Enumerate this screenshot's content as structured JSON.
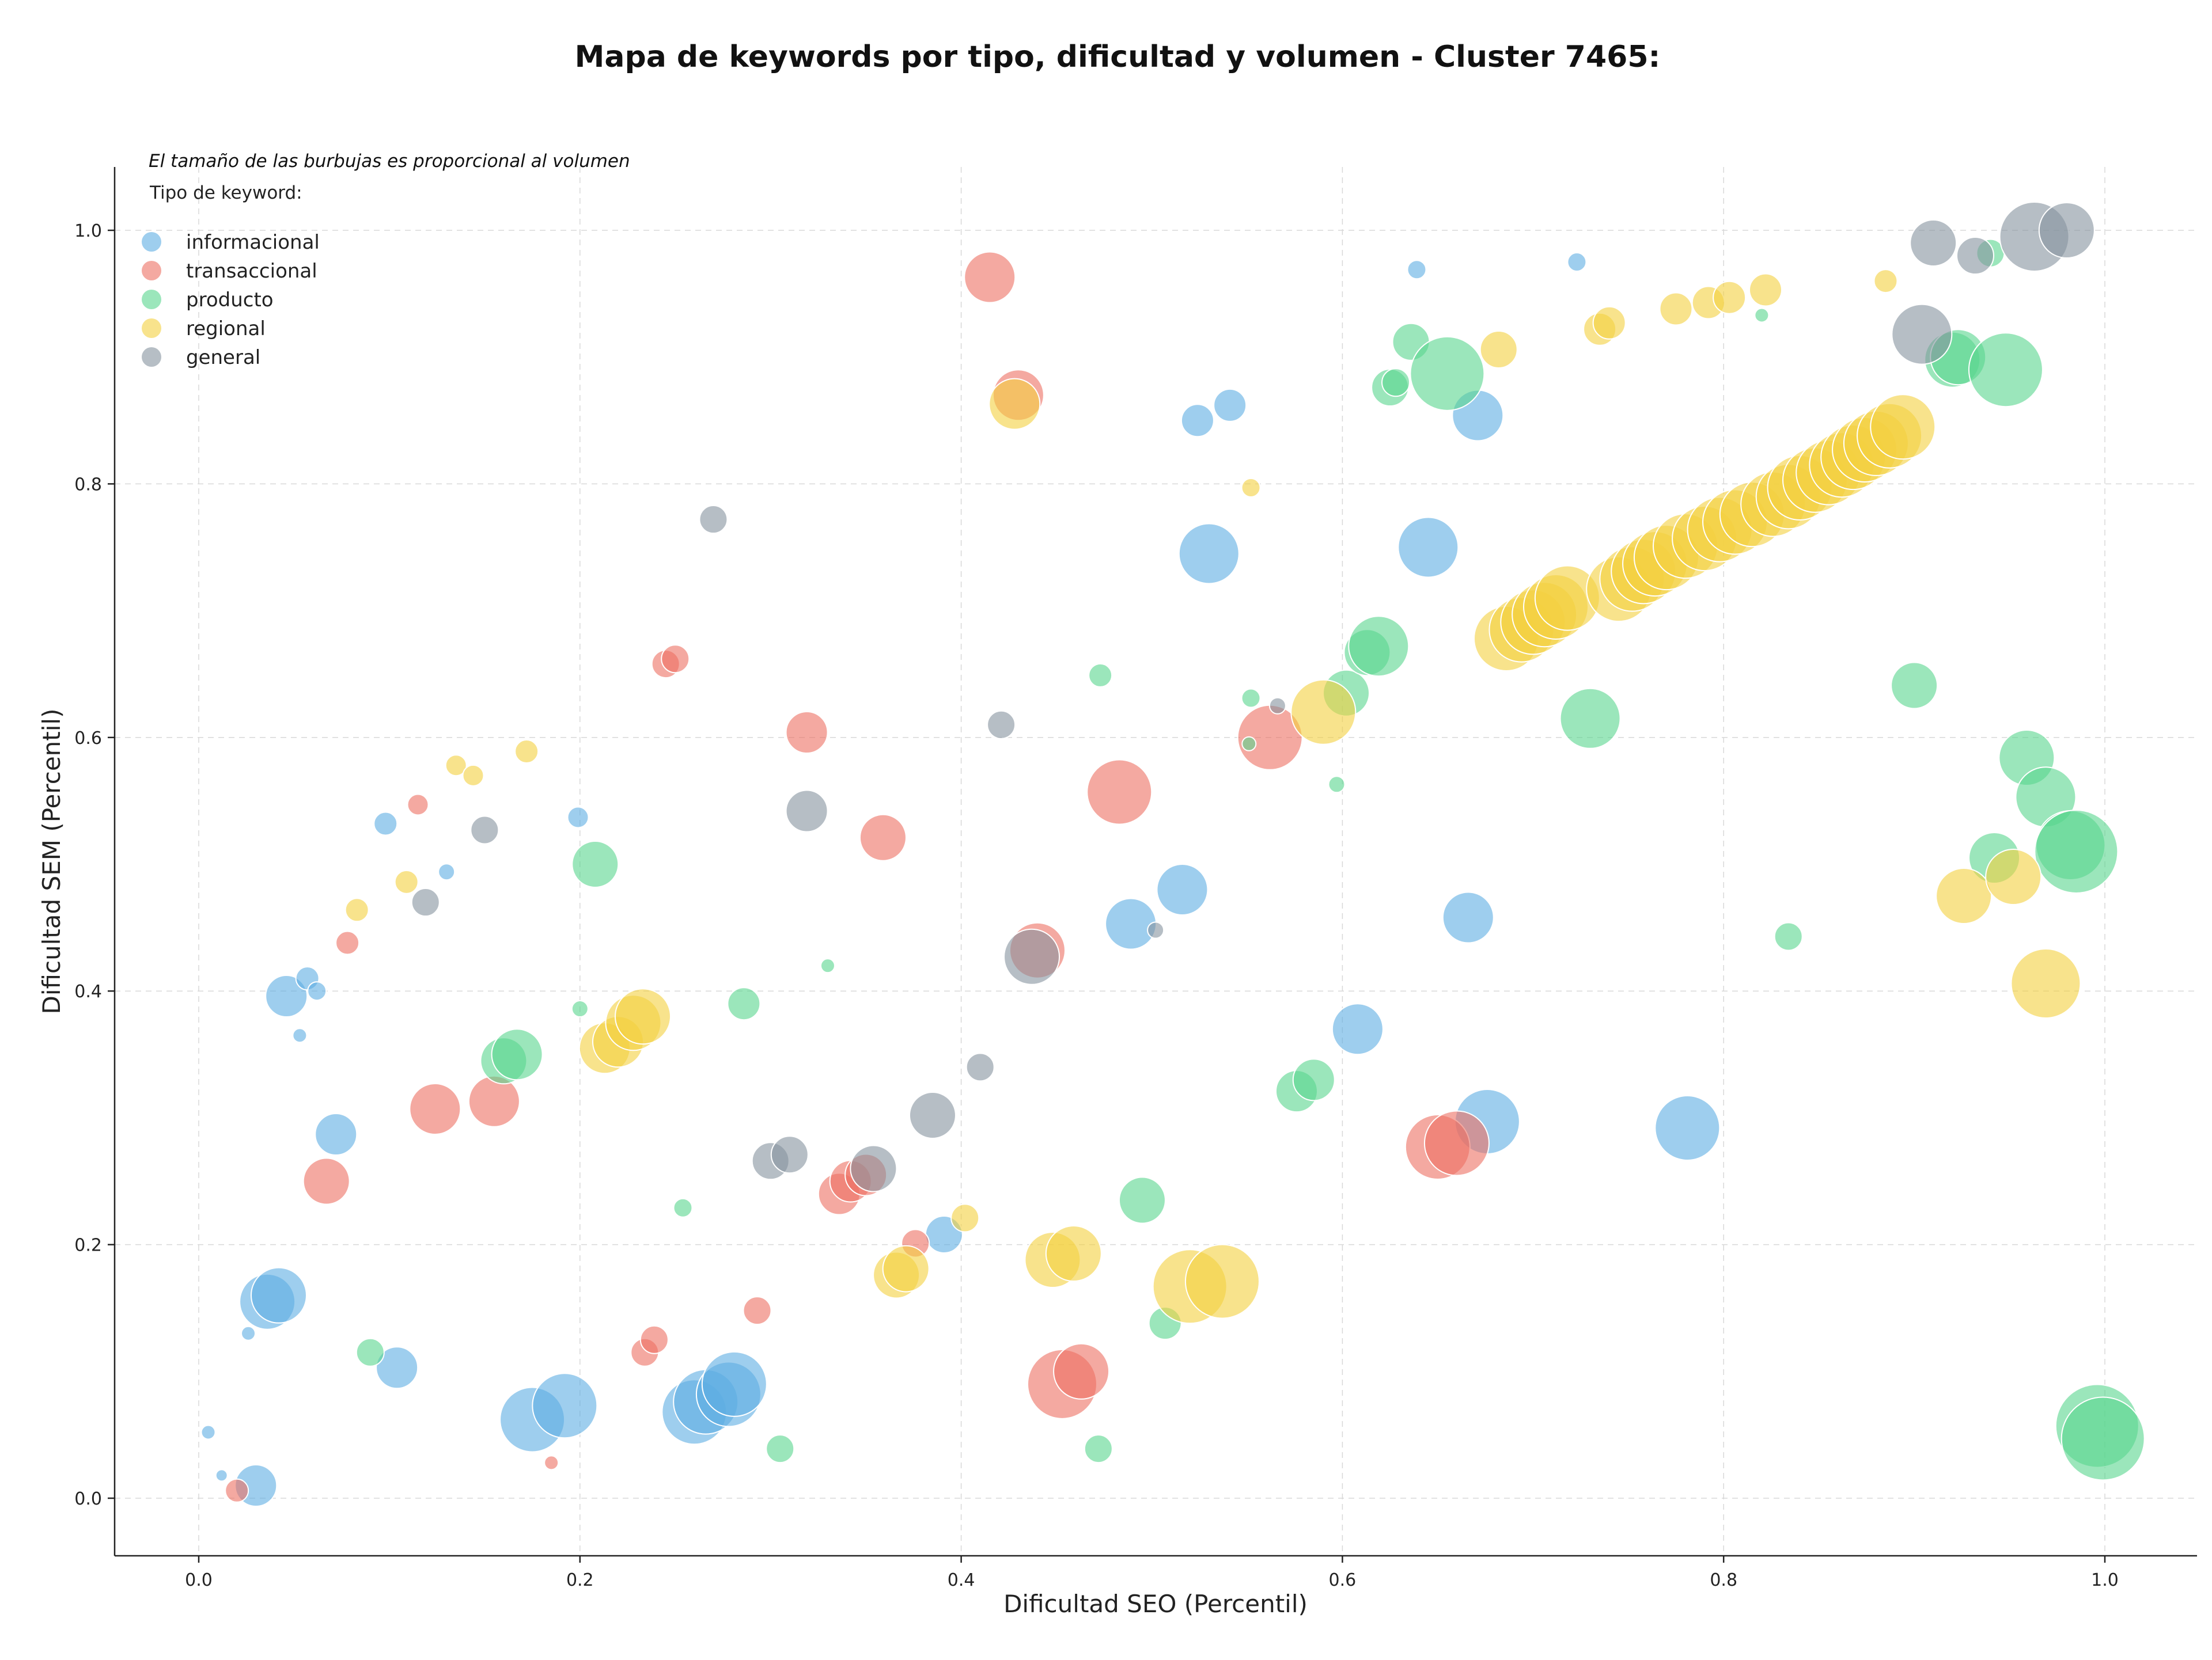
{
  "chart_data": {
    "type": "scatter",
    "title": "Mapa de keywords por tipo, dificultad y volumen - Cluster 7465:",
    "xlabel": "Dificultad SEO (Percentil)",
    "ylabel": "Dificultad SEM (Percentil)",
    "xlim": [
      -0.045,
      1.05
    ],
    "ylim": [
      -0.045,
      1.05
    ],
    "xticks": [
      "0.0",
      "0.2",
      "0.4",
      "0.6",
      "0.8",
      "1.0"
    ],
    "yticks": [
      "0.0",
      "0.2",
      "0.4",
      "0.6",
      "0.8",
      "1.0"
    ],
    "grid": true,
    "annotation": "El tamaño de las burbujas es proporcional al volumen",
    "legend": {
      "title": "Tipo de keyword:",
      "placement": "top-left"
    },
    "series": [
      {
        "name": "informacional",
        "color": "#5dade2",
        "points": [
          [
            0.005,
            0.052,
            0.3
          ],
          [
            0.012,
            0.018,
            0.25
          ],
          [
            0.03,
            0.01,
            0.9
          ],
          [
            0.026,
            0.13,
            0.3
          ],
          [
            0.036,
            0.155,
            1.2
          ],
          [
            0.042,
            0.16,
            1.2
          ],
          [
            0.046,
            0.396,
            0.9
          ],
          [
            0.053,
            0.365,
            0.3
          ],
          [
            0.057,
            0.41,
            0.5
          ],
          [
            0.062,
            0.4,
            0.4
          ],
          [
            0.072,
            0.287,
            0.9
          ],
          [
            0.098,
            0.532,
            0.5
          ],
          [
            0.104,
            0.103,
            0.9
          ],
          [
            0.13,
            0.494,
            0.35
          ],
          [
            0.175,
            0.062,
            1.4
          ],
          [
            0.192,
            0.073,
            1.4
          ],
          [
            0.199,
            0.537,
            0.45
          ],
          [
            0.26,
            0.068,
            1.4
          ],
          [
            0.266,
            0.076,
            1.4
          ],
          [
            0.278,
            0.082,
            1.4
          ],
          [
            0.281,
            0.09,
            1.4
          ],
          [
            0.391,
            0.208,
            0.8
          ],
          [
            0.489,
            0.453,
            1.1
          ],
          [
            0.516,
            0.48,
            1.1
          ],
          [
            0.524,
            0.85,
            0.7
          ],
          [
            0.53,
            0.745,
            1.3
          ],
          [
            0.541,
            0.862,
            0.7
          ],
          [
            0.608,
            0.37,
            1.1
          ],
          [
            0.639,
            0.969,
            0.4
          ],
          [
            0.645,
            0.75,
            1.3
          ],
          [
            0.666,
            0.458,
            1.1
          ],
          [
            0.671,
            0.854,
            1.1
          ],
          [
            0.676,
            0.297,
            1.4
          ],
          [
            0.723,
            0.975,
            0.4
          ],
          [
            0.781,
            0.292,
            1.4
          ]
        ]
      },
      {
        "name": "transaccional",
        "color": "#ec7063",
        "points": [
          [
            0.02,
            0.006,
            0.5
          ],
          [
            0.067,
            0.25,
            1.0
          ],
          [
            0.078,
            0.438,
            0.5
          ],
          [
            0.115,
            0.547,
            0.45
          ],
          [
            0.124,
            0.307,
            1.1
          ],
          [
            0.155,
            0.313,
            1.1
          ],
          [
            0.185,
            0.028,
            0.3
          ],
          [
            0.234,
            0.115,
            0.6
          ],
          [
            0.239,
            0.125,
            0.6
          ],
          [
            0.245,
            0.658,
            0.6
          ],
          [
            0.25,
            0.662,
            0.6
          ],
          [
            0.293,
            0.148,
            0.6
          ],
          [
            0.319,
            0.604,
            0.9
          ],
          [
            0.336,
            0.24,
            0.9
          ],
          [
            0.342,
            0.25,
            0.9
          ],
          [
            0.35,
            0.255,
            0.9
          ],
          [
            0.359,
            0.521,
            1.0
          ],
          [
            0.376,
            0.201,
            0.6
          ],
          [
            0.415,
            0.963,
            1.1
          ],
          [
            0.43,
            0.87,
            1.1
          ],
          [
            0.44,
            0.432,
            1.2
          ],
          [
            0.453,
            0.09,
            1.5
          ],
          [
            0.463,
            0.1,
            1.2
          ],
          [
            0.483,
            0.557,
            1.4
          ],
          [
            0.562,
            0.6,
            1.4
          ],
          [
            0.65,
            0.277,
            1.4
          ],
          [
            0.66,
            0.28,
            1.4
          ]
        ]
      },
      {
        "name": "producto",
        "color": "#58d68d",
        "points": [
          [
            0.09,
            0.115,
            0.6
          ],
          [
            0.16,
            0.345,
            1.0
          ],
          [
            0.167,
            0.35,
            1.1
          ],
          [
            0.2,
            0.386,
            0.35
          ],
          [
            0.208,
            0.5,
            1.0
          ],
          [
            0.254,
            0.229,
            0.4
          ],
          [
            0.286,
            0.39,
            0.7
          ],
          [
            0.305,
            0.039,
            0.6
          ],
          [
            0.33,
            0.42,
            0.3
          ],
          [
            0.472,
            0.039,
            0.6
          ],
          [
            0.473,
            0.649,
            0.5
          ],
          [
            0.495,
            0.235,
            1.0
          ],
          [
            0.507,
            0.138,
            0.7
          ],
          [
            0.551,
            0.595,
            0.3
          ],
          [
            0.552,
            0.631,
            0.4
          ],
          [
            0.576,
            0.321,
            0.9
          ],
          [
            0.585,
            0.33,
            0.9
          ],
          [
            0.597,
            0.563,
            0.35
          ],
          [
            0.602,
            0.635,
            1.0
          ],
          [
            0.613,
            0.667,
            1.0
          ],
          [
            0.619,
            0.672,
            1.3
          ],
          [
            0.625,
            0.876,
            0.8
          ],
          [
            0.628,
            0.88,
            0.6
          ],
          [
            0.636,
            0.912,
            0.8
          ],
          [
            0.655,
            0.887,
            1.6
          ],
          [
            0.73,
            0.615,
            1.3
          ],
          [
            0.82,
            0.933,
            0.3
          ],
          [
            0.834,
            0.443,
            0.6
          ],
          [
            0.9,
            0.641,
            1.0
          ],
          [
            0.92,
            0.898,
            1.2
          ],
          [
            0.923,
            0.9,
            1.2
          ],
          [
            0.94,
            0.982,
            0.6
          ],
          [
            0.942,
            0.505,
            1.1
          ],
          [
            0.948,
            0.89,
            1.6
          ],
          [
            0.959,
            0.584,
            1.2
          ],
          [
            0.969,
            0.553,
            1.3
          ],
          [
            0.982,
            0.515,
            1.5
          ],
          [
            0.985,
            0.51,
            1.8
          ],
          [
            0.996,
            0.057,
            1.8
          ],
          [
            0.999,
            0.047,
            1.8
          ]
        ]
      },
      {
        "name": "regional",
        "color": "#f4d03f",
        "points": [
          [
            0.083,
            0.464,
            0.5
          ],
          [
            0.109,
            0.486,
            0.5
          ],
          [
            0.135,
            0.578,
            0.45
          ],
          [
            0.144,
            0.57,
            0.45
          ],
          [
            0.172,
            0.589,
            0.5
          ],
          [
            0.213,
            0.355,
            1.1
          ],
          [
            0.22,
            0.36,
            1.1
          ],
          [
            0.228,
            0.375,
            1.2
          ],
          [
            0.233,
            0.38,
            1.2
          ],
          [
            0.366,
            0.176,
            1.0
          ],
          [
            0.371,
            0.181,
            1.0
          ],
          [
            0.402,
            0.221,
            0.6
          ],
          [
            0.428,
            0.863,
            1.1
          ],
          [
            0.448,
            0.188,
            1.2
          ],
          [
            0.459,
            0.193,
            1.2
          ],
          [
            0.52,
            0.167,
            1.6
          ],
          [
            0.537,
            0.171,
            1.6
          ],
          [
            0.552,
            0.797,
            0.4
          ],
          [
            0.59,
            0.62,
            1.4
          ],
          [
            0.682,
            0.906,
            0.8
          ],
          [
            0.686,
            0.678,
            1.4
          ],
          [
            0.694,
            0.685,
            1.4
          ],
          [
            0.7,
            0.691,
            1.4
          ],
          [
            0.706,
            0.697,
            1.4
          ],
          [
            0.712,
            0.703,
            1.4
          ],
          [
            0.718,
            0.71,
            1.4
          ],
          [
            0.735,
            0.922,
            0.7
          ],
          [
            0.74,
            0.927,
            0.7
          ],
          [
            0.745,
            0.717,
            1.4
          ],
          [
            0.752,
            0.725,
            1.4
          ],
          [
            0.758,
            0.731,
            1.4
          ],
          [
            0.764,
            0.737,
            1.4
          ],
          [
            0.77,
            0.742,
            1.4
          ],
          [
            0.775,
            0.938,
            0.7
          ],
          [
            0.78,
            0.751,
            1.4
          ],
          [
            0.79,
            0.757,
            1.4
          ],
          [
            0.792,
            0.943,
            0.7
          ],
          [
            0.798,
            0.764,
            1.4
          ],
          [
            0.803,
            0.947,
            0.7
          ],
          [
            0.806,
            0.77,
            1.4
          ],
          [
            0.815,
            0.776,
            1.4
          ],
          [
            0.822,
            0.953,
            0.7
          ],
          [
            0.826,
            0.784,
            1.4
          ],
          [
            0.834,
            0.79,
            1.4
          ],
          [
            0.84,
            0.797,
            1.4
          ],
          [
            0.848,
            0.803,
            1.4
          ],
          [
            0.855,
            0.809,
            1.4
          ],
          [
            0.862,
            0.815,
            1.4
          ],
          [
            0.868,
            0.821,
            1.4
          ],
          [
            0.874,
            0.827,
            1.4
          ],
          [
            0.88,
            0.832,
            1.4
          ],
          [
            0.885,
            0.96,
            0.5
          ],
          [
            0.887,
            0.838,
            1.4
          ],
          [
            0.894,
            0.845,
            1.4
          ],
          [
            0.926,
            0.475,
            1.2
          ],
          [
            0.952,
            0.49,
            1.2
          ],
          [
            0.969,
            0.406,
            1.5
          ]
        ]
      },
      {
        "name": "general",
        "color": "#85929e",
        "points": [
          [
            0.119,
            0.47,
            0.6
          ],
          [
            0.15,
            0.527,
            0.6
          ],
          [
            0.27,
            0.772,
            0.6
          ],
          [
            0.3,
            0.266,
            0.8
          ],
          [
            0.31,
            0.271,
            0.8
          ],
          [
            0.319,
            0.542,
            0.9
          ],
          [
            0.354,
            0.26,
            1.0
          ],
          [
            0.385,
            0.302,
            1.0
          ],
          [
            0.41,
            0.34,
            0.6
          ],
          [
            0.421,
            0.61,
            0.6
          ],
          [
            0.437,
            0.427,
            1.2
          ],
          [
            0.502,
            0.448,
            0.35
          ],
          [
            0.566,
            0.625,
            0.35
          ],
          [
            0.904,
            0.918,
            1.3
          ],
          [
            0.91,
            0.99,
            1.0
          ],
          [
            0.932,
            0.98,
            0.8
          ],
          [
            0.963,
            0.995,
            1.5
          ],
          [
            0.98,
            1.0,
            1.2
          ]
        ]
      }
    ]
  }
}
